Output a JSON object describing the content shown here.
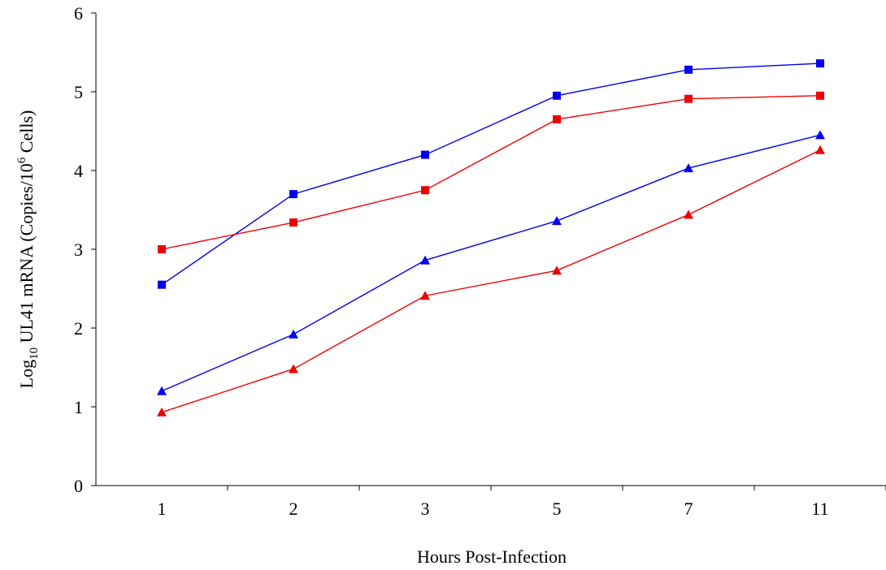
{
  "chart_data": {
    "type": "line",
    "xlabel": "Hours Post-Infection",
    "ylabel": {
      "prefix": "Log",
      "prefix_sub": "10",
      "middle": " UL41 mRNA (Copies/10",
      "exponent": "6",
      "suffix": " Cells)"
    },
    "categories": [
      "1",
      "2",
      "3",
      "5",
      "7",
      "11"
    ],
    "ylim": [
      0,
      6
    ],
    "yticks": [
      "0",
      "1",
      "2",
      "3",
      "4",
      "5",
      "6"
    ],
    "grid": false,
    "legend": "none",
    "series": [
      {
        "marker": "square",
        "color": "#0000ee",
        "values": [
          2.55,
          3.7,
          4.2,
          4.95,
          5.28,
          5.36
        ]
      },
      {
        "marker": "square",
        "color": "#ee0000",
        "values": [
          3.0,
          3.34,
          3.75,
          4.65,
          4.91,
          4.95
        ]
      },
      {
        "marker": "triangle",
        "color": "#0000ee",
        "values": [
          1.2,
          1.92,
          2.86,
          3.36,
          4.03,
          4.45
        ]
      },
      {
        "marker": "triangle",
        "color": "#ee0000",
        "values": [
          0.93,
          1.48,
          2.41,
          2.73,
          3.44,
          4.26
        ]
      }
    ]
  }
}
